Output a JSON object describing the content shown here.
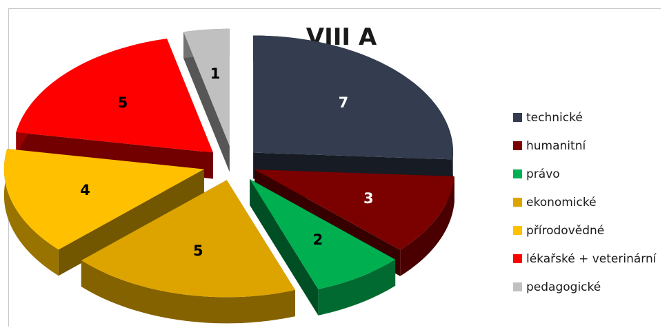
{
  "chart_data": {
    "type": "pie",
    "title": "VIII A",
    "categories": [
      "technické",
      "humanitní",
      "právo",
      "ekonomické",
      "přírodovědné",
      "lékařské + veterinární",
      "pedagogické"
    ],
    "values": [
      7,
      3,
      2,
      5,
      4,
      5,
      1
    ],
    "colors": [
      "#333d4f",
      "#7b0000",
      "#00b050",
      "#dda400",
      "#ffc000",
      "#ff0000",
      "#c0c0c0"
    ],
    "label_colors": [
      "#ffffff",
      "#ffffff",
      "#000000",
      "#000000",
      "#000000",
      "#000000",
      "#000000"
    ],
    "legend_position": "right",
    "style": "3d exploded pie"
  }
}
